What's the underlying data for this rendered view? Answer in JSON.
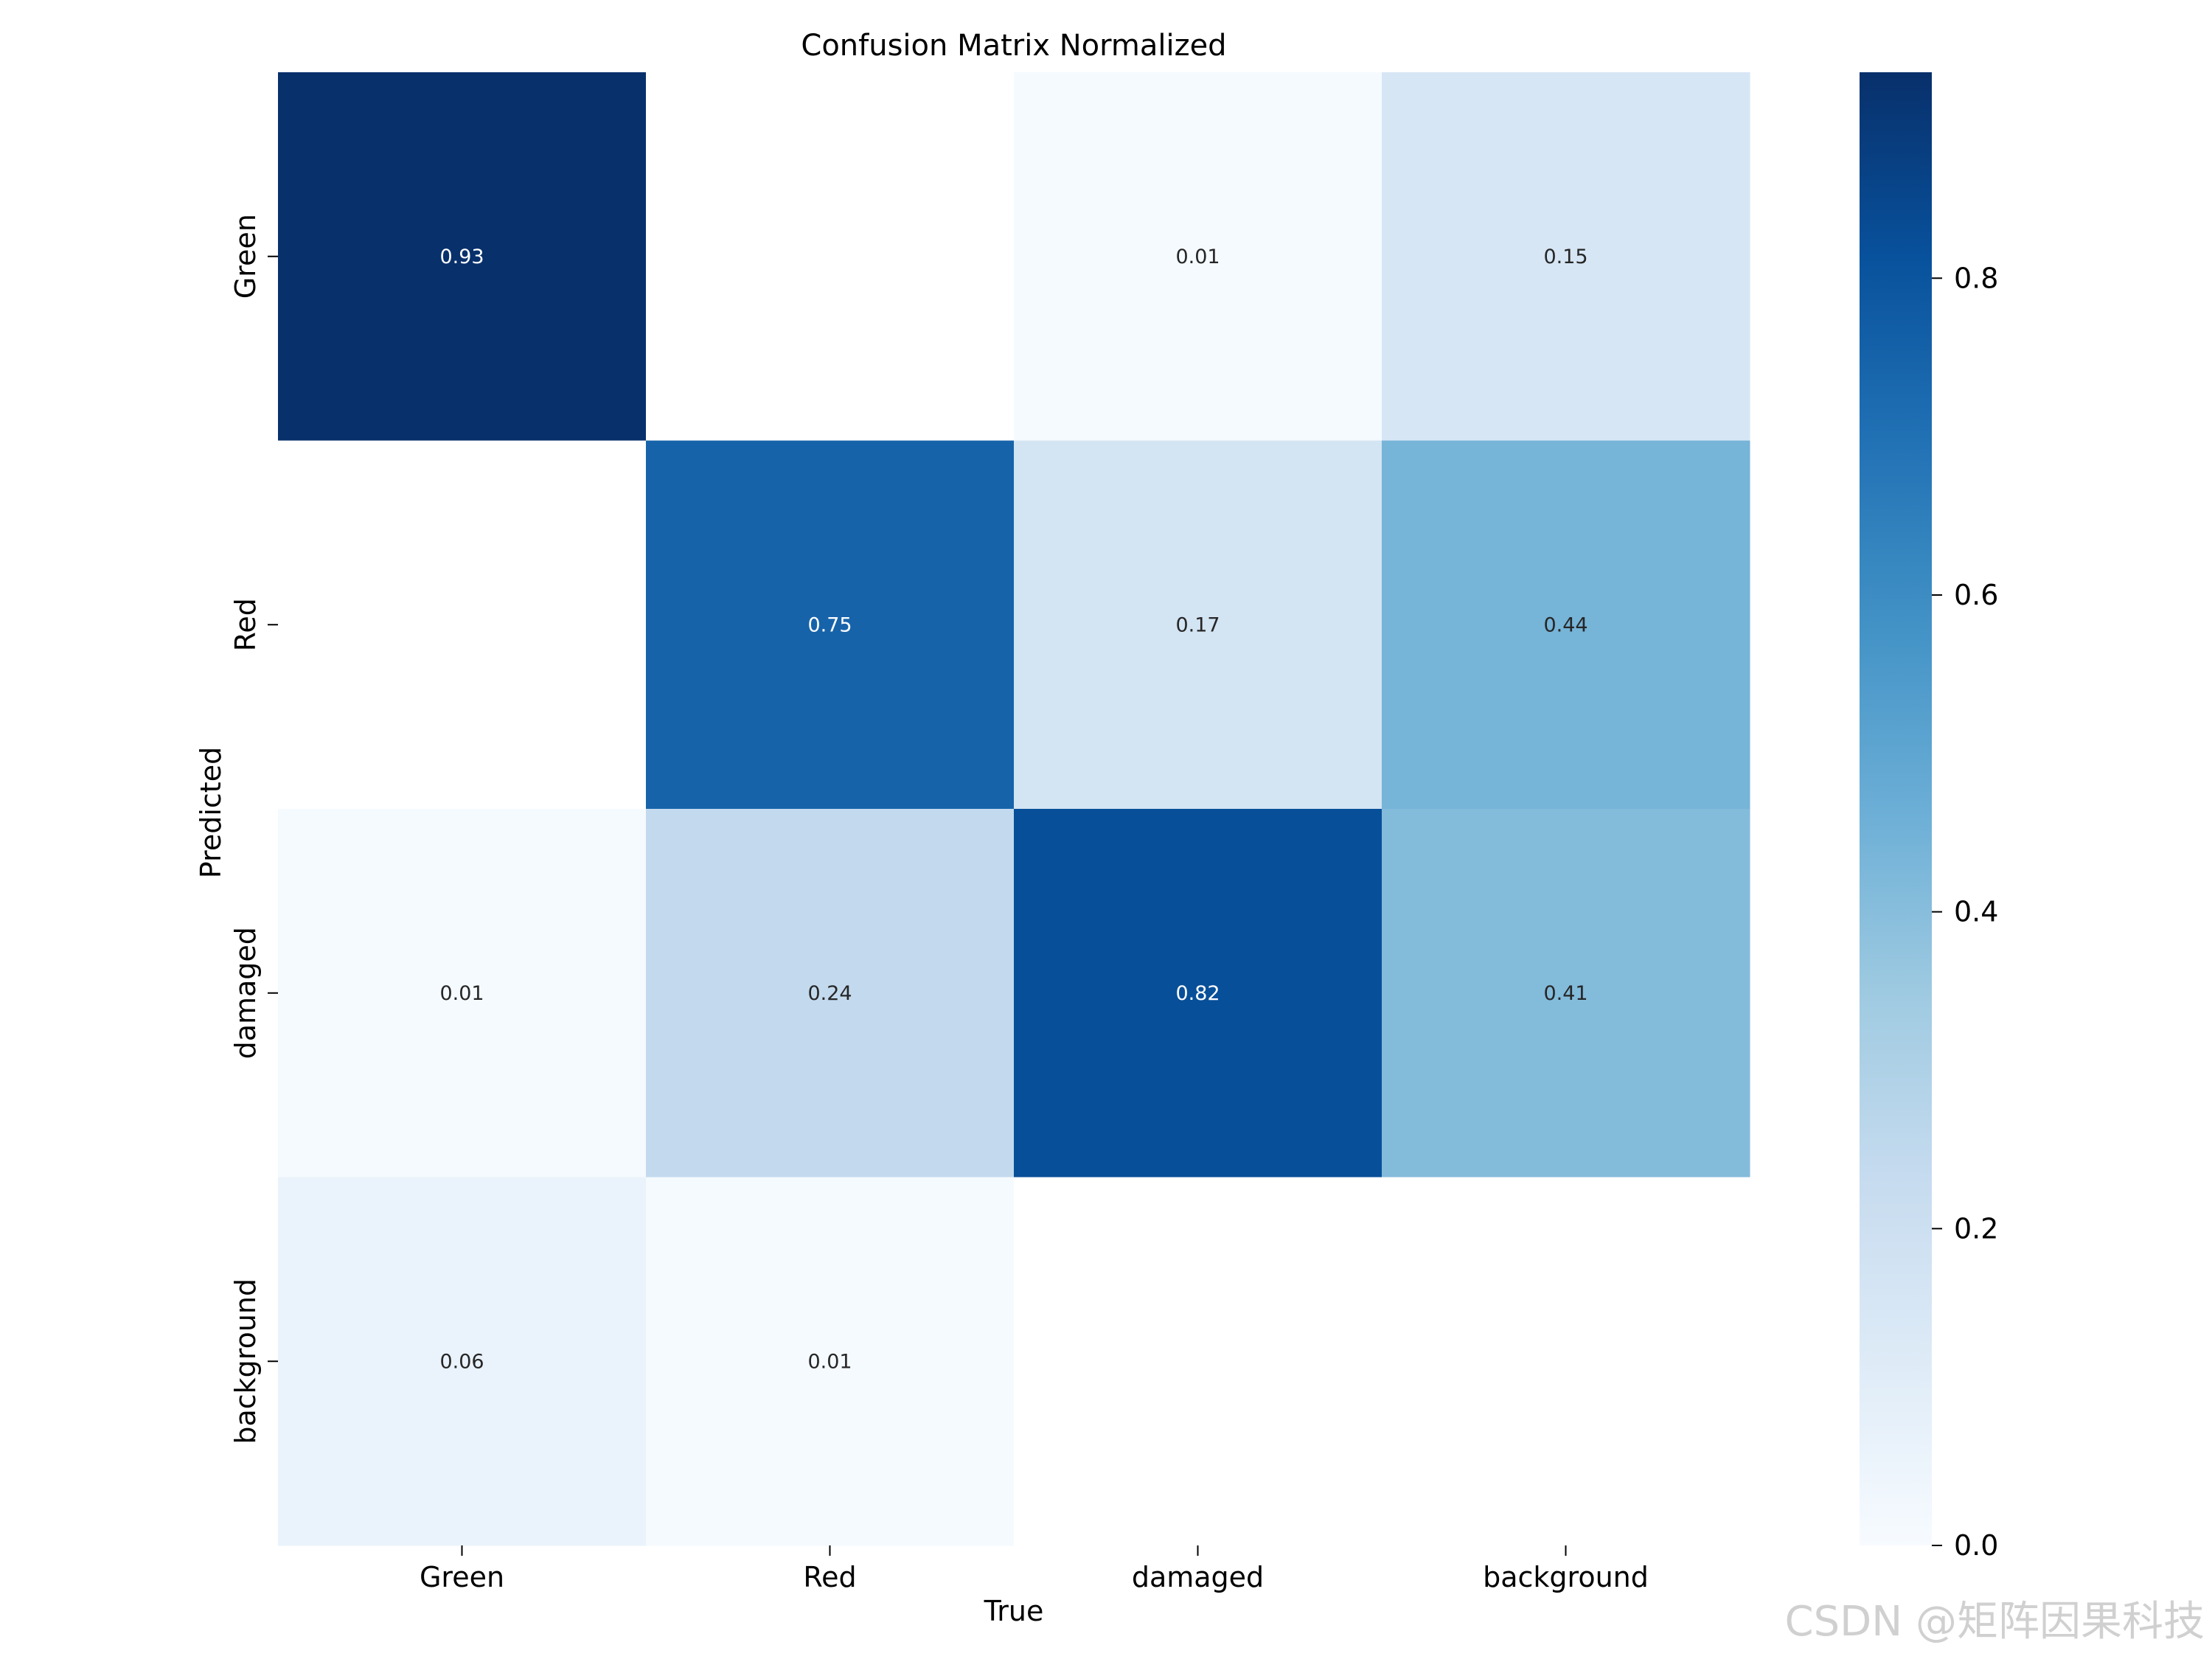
{
  "chart_data": {
    "type": "heatmap",
    "title": "Confusion Matrix Normalized",
    "xlabel": "True",
    "ylabel": "Predicted",
    "x_categories": [
      "Green",
      "Red",
      "damaged",
      "background"
    ],
    "y_categories": [
      "Green",
      "Red",
      "damaged",
      "background"
    ],
    "values": [
      [
        0.93,
        null,
        0.01,
        0.15
      ],
      [
        null,
        0.75,
        0.17,
        0.44
      ],
      [
        0.01,
        0.24,
        0.82,
        0.41
      ],
      [
        0.06,
        0.01,
        null,
        null
      ]
    ],
    "colorbar": {
      "range": [
        0.0,
        0.93
      ],
      "ticks": [
        0.0,
        0.2,
        0.4,
        0.6,
        0.8
      ],
      "tick_labels": [
        "0.0",
        "0.2",
        "0.4",
        "0.6",
        "0.8"
      ],
      "colormap": "Blues"
    },
    "grid": false
  },
  "watermark": "CSDN @矩阵因果科技"
}
